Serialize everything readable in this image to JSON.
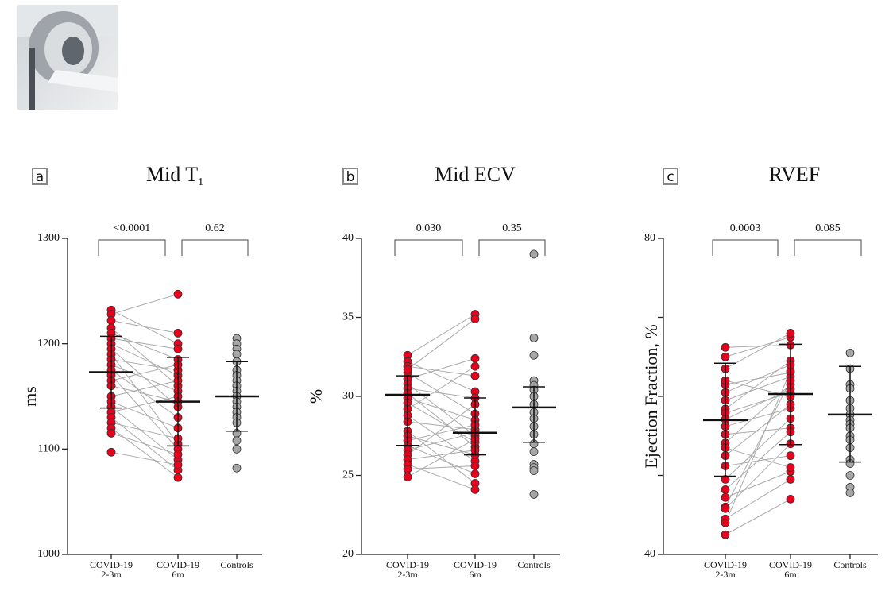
{
  "chart_data": [
    {
      "type": "paired-dot",
      "panel": "a",
      "title": "Mid T",
      "title_subscript": "1",
      "ylabel": "ms",
      "ylim": [
        1000,
        1300
      ],
      "yticks": [
        1000,
        1100,
        1200,
        1300
      ],
      "categories": [
        [
          "COVID-19",
          "2-3m"
        ],
        [
          "COVID-19",
          "6m"
        ],
        [
          "Controls"
        ]
      ],
      "p_values": [
        "<0.0001",
        "0.62"
      ],
      "groups": [
        {
          "color": "#e8001c",
          "center": 1173,
          "lower": 1139,
          "upper": 1207,
          "values": [
            1232,
            1228,
            1222,
            1215,
            1210,
            1205,
            1200,
            1195,
            1190,
            1185,
            1180,
            1175,
            1170,
            1165,
            1150,
            1145,
            1140,
            1135,
            1130,
            1125,
            1120,
            1115,
            1097,
            1160
          ]
        },
        {
          "color": "#e8001c",
          "center": 1145,
          "lower": 1103,
          "upper": 1187,
          "values": [
            1200,
            1247,
            1210,
            1160,
            1185,
            1195,
            1170,
            1140,
            1105,
            1175,
            1155,
            1130,
            1100,
            1180,
            1165,
            1120,
            1090,
            1150,
            1080,
            1110,
            1073,
            1095,
            1085,
            1145
          ]
        },
        {
          "color": "#a6a6a6",
          "center": 1150,
          "lower": 1117,
          "upper": 1183,
          "values": [
            1205,
            1200,
            1195,
            1190,
            1183,
            1175,
            1170,
            1165,
            1160,
            1155,
            1150,
            1145,
            1140,
            1135,
            1130,
            1125,
            1115,
            1108,
            1100,
            1082
          ]
        }
      ]
    },
    {
      "type": "paired-dot",
      "panel": "b",
      "title": "Mid ECV",
      "ylabel": "%",
      "ylim": [
        20,
        40
      ],
      "yticks": [
        20,
        25,
        30,
        35,
        40
      ],
      "categories": [
        [
          "COVID-19",
          "2-3m"
        ],
        [
          "COVID-19",
          "6m"
        ],
        [
          "Controls"
        ]
      ],
      "p_values": [
        "0.030",
        "0.35"
      ],
      "groups": [
        {
          "color": "#e8001c",
          "center": 30.1,
          "lower": 26.9,
          "upper": 31.3,
          "values": [
            32.6,
            32.2,
            31.9,
            31.5,
            31.1,
            30.8,
            30.5,
            30.2,
            29.9,
            29.6,
            29.2,
            28.8,
            28.4,
            27.8,
            27.5,
            27.2,
            26.9,
            26.6,
            26.3,
            26.0,
            25.7,
            25.4,
            24.9,
            31.7
          ]
        },
        {
          "color": "#e8001c",
          "center": 27.7,
          "lower": 26.3,
          "upper": 29.9,
          "values": [
            35.2,
            30.3,
            31.3,
            28.9,
            32.4,
            27.5,
            29.9,
            26.8,
            28.5,
            27.1,
            31.9,
            25.9,
            27.9,
            24.5,
            26.3,
            28.2,
            25.1,
            27.7,
            29.5,
            26.6,
            24.1,
            25.6,
            27.3,
            34.9
          ]
        },
        {
          "color": "#a6a6a6",
          "center": 29.3,
          "lower": 27.1,
          "upper": 30.6,
          "values": [
            39.0,
            33.7,
            32.6,
            31.0,
            30.7,
            30.4,
            30.0,
            29.5,
            29.0,
            28.6,
            28.1,
            27.6,
            27.0,
            26.5,
            25.7,
            25.5,
            25.3,
            23.8
          ]
        }
      ]
    },
    {
      "type": "paired-dot",
      "panel": "c",
      "title": "RVEF",
      "ylabel": "Ejection Fraction, %",
      "ylim": [
        40,
        80
      ],
      "yticks": [
        40,
        80
      ],
      "minor_yticks": [
        50,
        60,
        70
      ],
      "categories": [
        [
          "COVID-19",
          "2-3m"
        ],
        [
          "COVID-19",
          "6m"
        ],
        [
          "Controls"
        ]
      ],
      "p_values": [
        "0.0003",
        "0.085"
      ],
      "groups": [
        {
          "color": "#e8001c",
          "center": 57.0,
          "lower": 49.9,
          "upper": 64.2,
          "values": [
            66.2,
            65.0,
            61.5,
            59.5,
            58.4,
            57.9,
            57.1,
            56.2,
            55.2,
            54.1,
            52.5,
            51.2,
            49.5,
            48.2,
            47.2,
            46.0,
            45.8,
            44.5,
            44.0,
            42.5,
            62.0,
            60.5,
            63.5,
            53.5
          ]
        },
        {
          "color": "#e8001c",
          "center": 60.3,
          "lower": 53.9,
          "upper": 66.6,
          "values": [
            66.5,
            67.5,
            63.0,
            62.5,
            64.5,
            60.5,
            60.9,
            58.5,
            56.0,
            61.5,
            59.0,
            52.5,
            57.2,
            55.5,
            50.5,
            62.0,
            54.0,
            49.5,
            63.2,
            47.0,
            60.0,
            64.0,
            68.0,
            51.0
          ]
        },
        {
          "color": "#a6a6a6",
          "center": 57.7,
          "lower": 51.7,
          "upper": 63.8,
          "values": [
            65.5,
            63.5,
            61.5,
            61.0,
            59.5,
            58.5,
            57.7,
            57.0,
            56.5,
            56.0,
            55.0,
            54.5,
            53.5,
            52.0,
            51.5,
            50.0,
            48.5,
            47.8
          ]
        }
      ]
    }
  ]
}
